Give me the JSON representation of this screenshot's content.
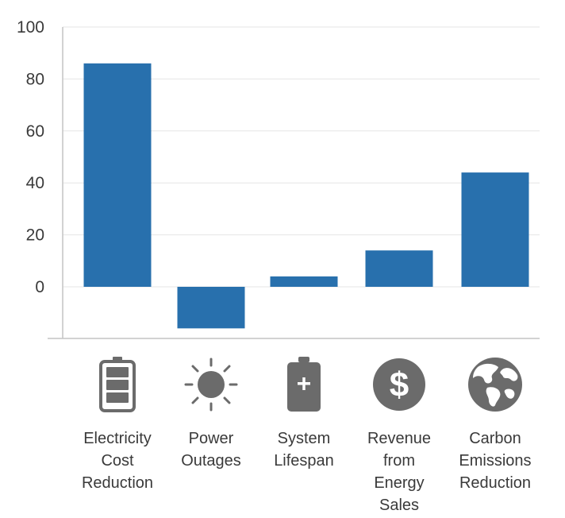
{
  "chart_data": {
    "type": "bar",
    "categories": [
      "Electricity\nCost\nReduction",
      "Power\nOutages",
      "System\nLifespan",
      "Revenue\nfrom\nEnergy\nSales",
      "Carbon\nEmissions\nReduction"
    ],
    "values": [
      86,
      -16,
      4,
      14,
      44
    ],
    "icons": [
      "battery-icon",
      "sun-icon",
      "battery-plus-icon",
      "dollar-circle-icon",
      "globe-icon"
    ],
    "y_ticks": [
      "100",
      "80",
      "60",
      "40",
      "20",
      "0"
    ],
    "ylim": [
      -20,
      100
    ],
    "grid": true,
    "colors": {
      "bar": "#2870ad",
      "icon": "#6b6b6b",
      "grid": "#e6e6e6",
      "axis": "#c4c4c4"
    }
  }
}
